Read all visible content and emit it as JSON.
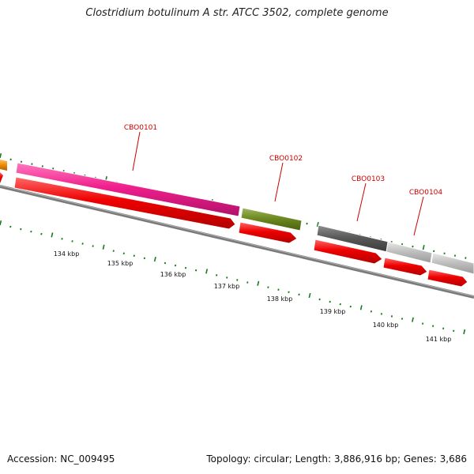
{
  "title": "Clostridium botulinum A str. ATCC 3502, complete genome",
  "footer": {
    "accession": "Accession: NC_009495",
    "info": "Topology: circular; Length: 3,886,916 bp; Genes: 3,686"
  },
  "scale_labels": [
    "134 kbp",
    "135 kbp",
    "136 kbp",
    "137 kbp",
    "138 kbp",
    "139 kbp",
    "140 kbp",
    "141 kbp"
  ],
  "gene_labels": [
    "CBO0101",
    "CBO0102",
    "CBO0103",
    "CBO0104"
  ],
  "colors": {
    "backbone": "#7a7a7a",
    "cds_arrow": "#ee0000",
    "tick": "#1a7a1a",
    "label": "#cc0000",
    "feature_orange": "#f0900a",
    "feature_magenta": "#f0208c",
    "feature_olive": "#6e8a22",
    "feature_darkgray": "#5a5a5a",
    "feature_lightgray": "#c0c0c0"
  }
}
